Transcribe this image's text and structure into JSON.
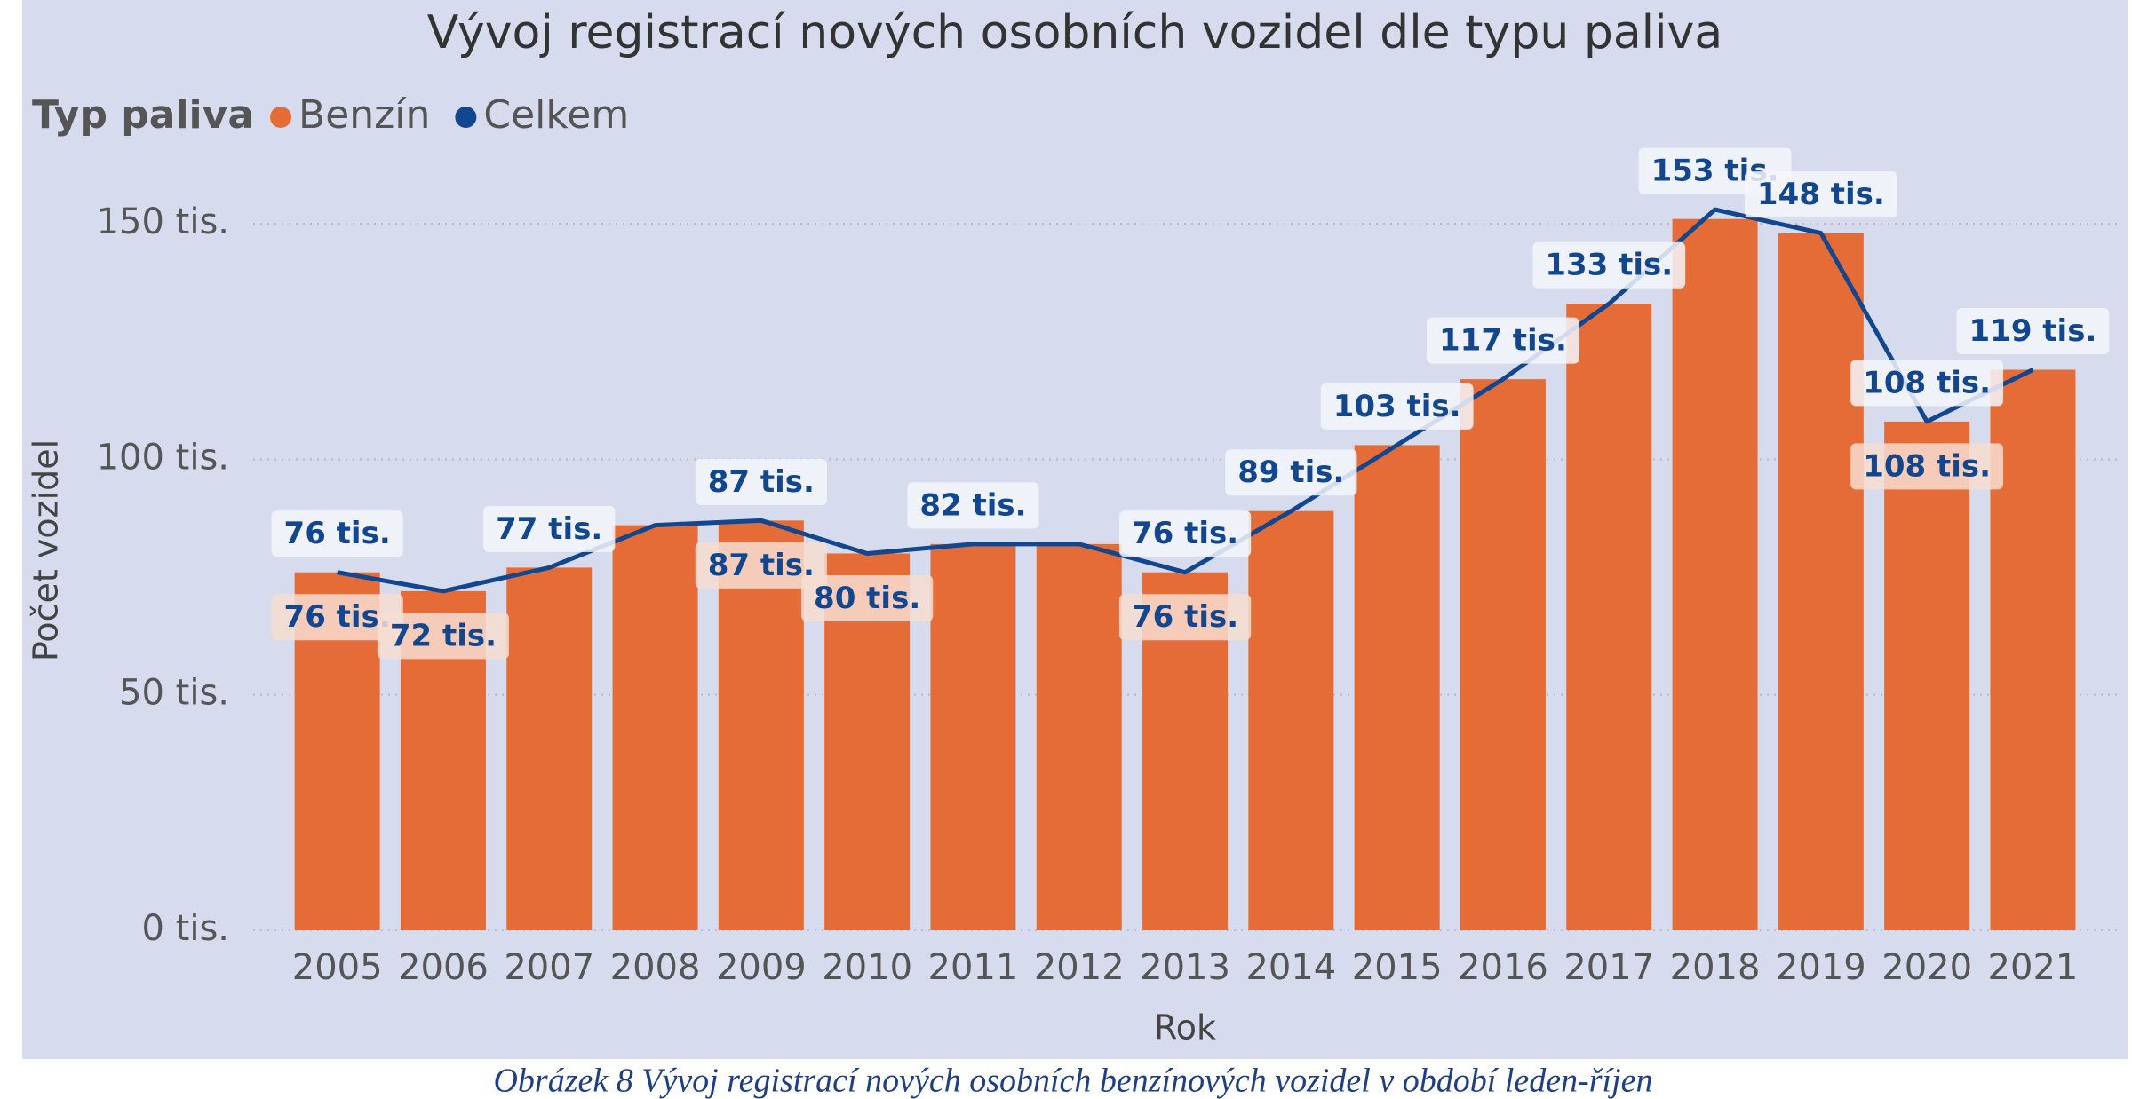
{
  "chart_data": {
    "type": "bar",
    "title": "Vývoj registrací nových osobních vozidel dle typu paliva",
    "legend_title": "Typ paliva",
    "x_label": "Rok",
    "y_label": "Počet vozidel",
    "caption": "Obrázek 8 Vývoj registrací nových osobních benzínových vozidel v období leden-říjen",
    "categories": [
      "2005",
      "2006",
      "2007",
      "2008",
      "2009",
      "2010",
      "2011",
      "2012",
      "2013",
      "2014",
      "2015",
      "2016",
      "2017",
      "2018",
      "2019",
      "2020",
      "2021"
    ],
    "ylim": [
      0,
      160000
    ],
    "yticks": [
      {
        "value": 0,
        "label": "0 tis."
      },
      {
        "value": 50000,
        "label": "50 tis."
      },
      {
        "value": 100000,
        "label": "100 tis."
      },
      {
        "value": 150000,
        "label": "150 tis."
      }
    ],
    "grid": true,
    "series": [
      {
        "name": "Benzín",
        "type": "bar",
        "color": "#e66c37",
        "values": [
          76000,
          72000,
          77000,
          86000,
          87000,
          80000,
          82000,
          82000,
          76000,
          89000,
          103000,
          117000,
          133000,
          151000,
          148000,
          108000,
          119000
        ],
        "value_labels": [
          "76 tis.",
          "72 tis.",
          null,
          null,
          "87 tis.",
          "80 tis.",
          null,
          null,
          "76 tis.",
          null,
          null,
          null,
          null,
          null,
          null,
          "108 tis.",
          null
        ]
      },
      {
        "name": "Celkem",
        "type": "line",
        "color": "#12478f",
        "values": [
          76000,
          72000,
          77000,
          86000,
          87000,
          80000,
          82000,
          82000,
          76000,
          89000,
          103000,
          117000,
          133000,
          153000,
          148000,
          108000,
          119000
        ],
        "value_labels": [
          "76 tis.",
          null,
          "77 tis.",
          null,
          "87 tis.",
          null,
          "82 tis.",
          null,
          "76 tis.",
          "89 tis.",
          "103 tis.",
          "117 tis.",
          "133 tis.",
          "153 tis.",
          "148 tis.",
          "108 tis.",
          "119 tis."
        ]
      }
    ]
  }
}
